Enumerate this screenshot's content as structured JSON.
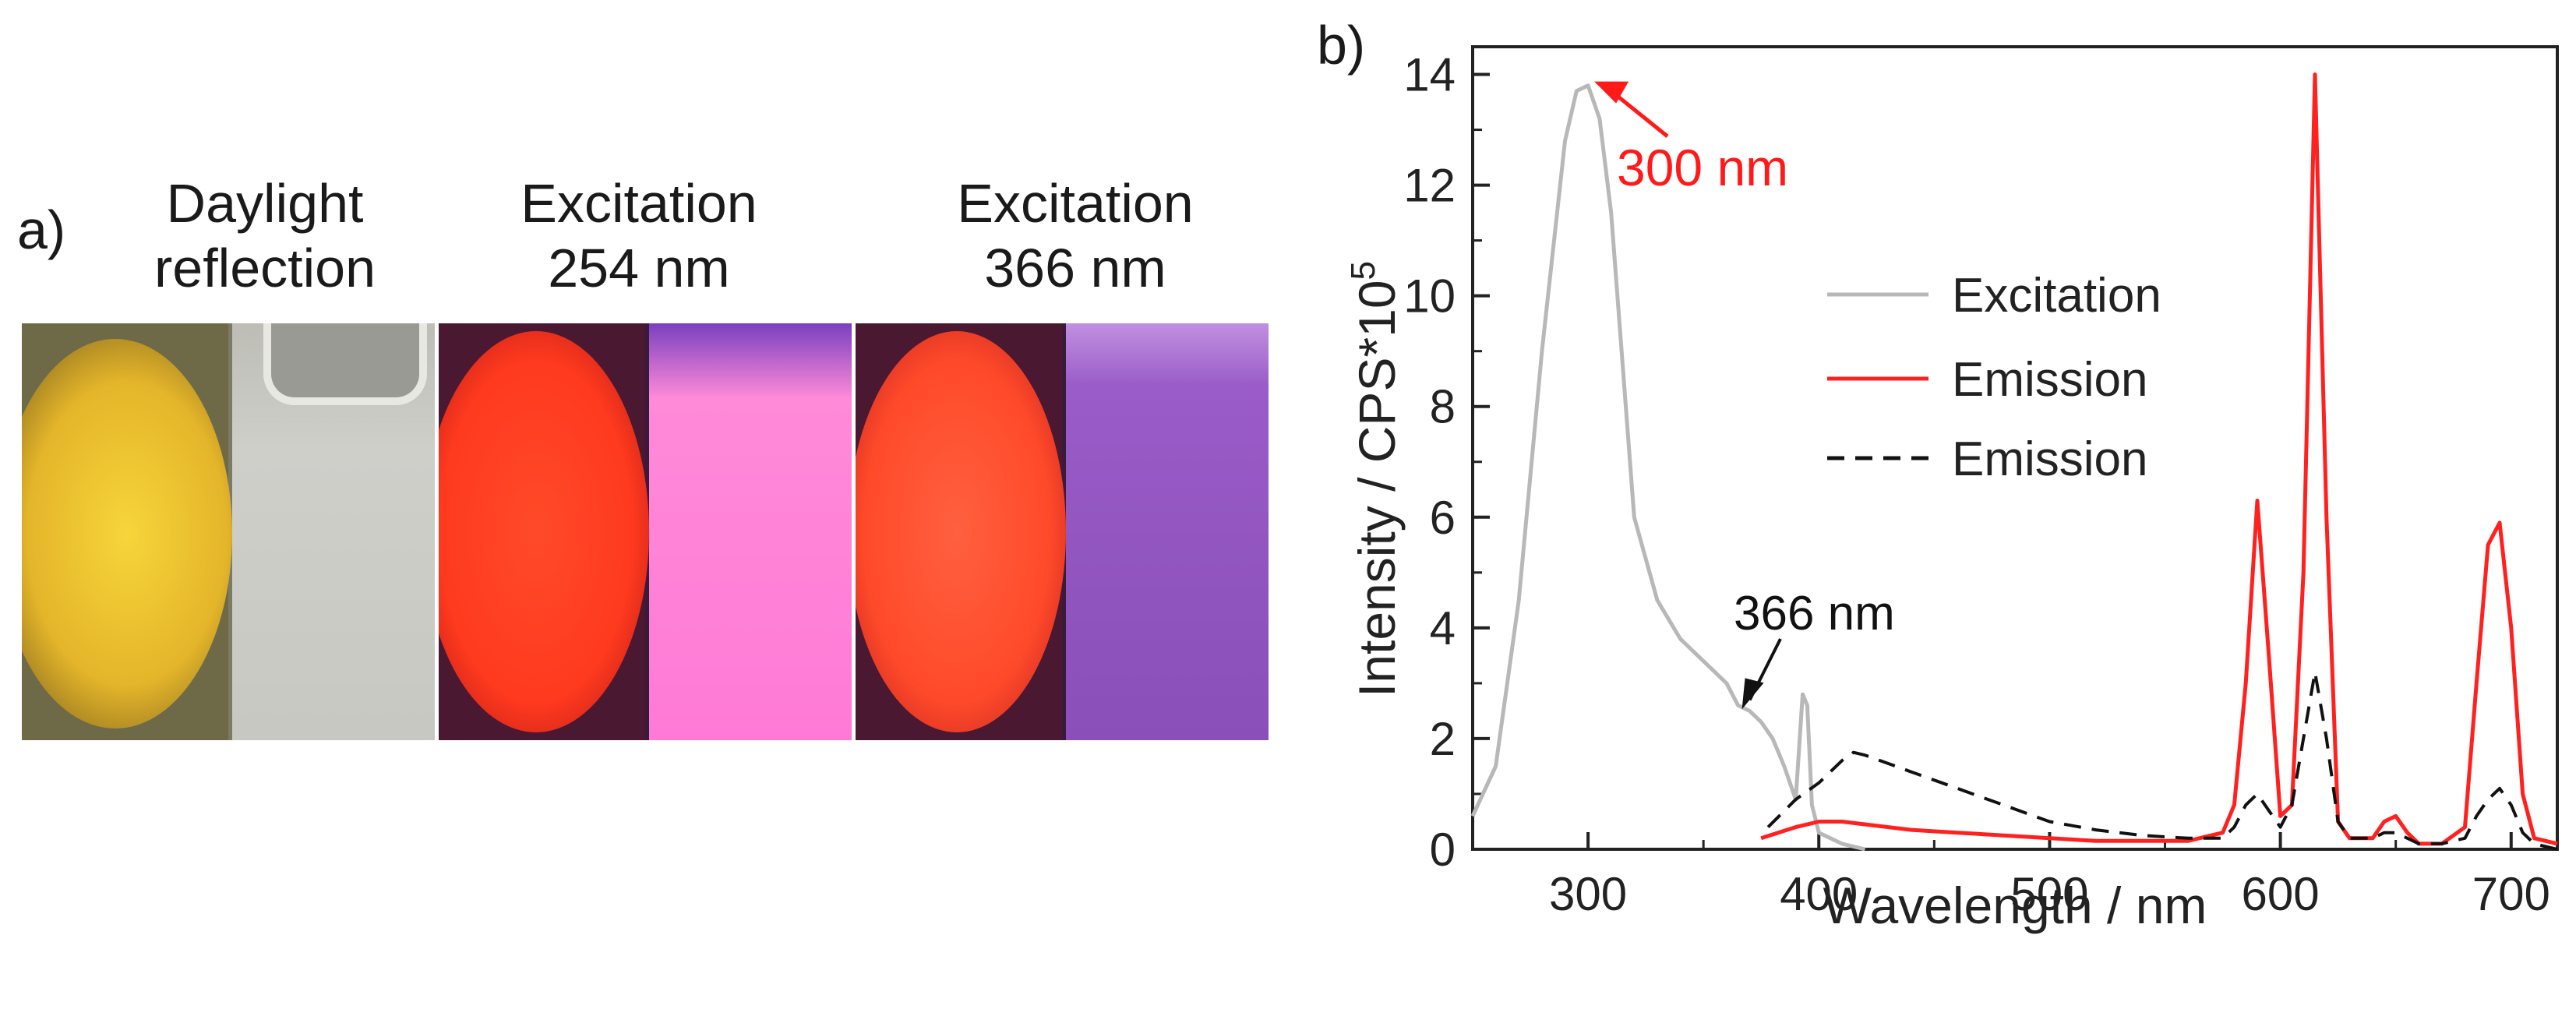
{
  "panel_a": {
    "label": "a)",
    "photos": [
      {
        "line1": "Daylight",
        "line2": "reflection"
      },
      {
        "line1": "Excitation",
        "line2": "254 nm"
      },
      {
        "line1": "Excitation",
        "line2": "366 nm"
      }
    ],
    "colors": {
      "daylight_powder": "#e4b52a",
      "daylight_vial": "#c8c8c2",
      "uv254_powder": "#ff3a1e",
      "uv254_vial": "#ff7ad6",
      "uv366_powder": "#ff4a2a",
      "uv366_vial": "#8a4fb8"
    }
  },
  "panel_b": {
    "label": "b)"
  },
  "chart_data": {
    "type": "line",
    "xlabel": "Wavelength / nm",
    "ylabel": "Intensity / CPS*10",
    "ylabel_superscript": "5",
    "xlim": [
      250,
      720
    ],
    "ylim": [
      0,
      14.5
    ],
    "xticks": [
      300,
      400,
      500,
      600,
      700
    ],
    "yticks": [
      0,
      2,
      4,
      6,
      8,
      10,
      12,
      14
    ],
    "legend_position": "center-right",
    "series": [
      {
        "name": "Excitation",
        "color": "#b8b8b8",
        "dash": "solid",
        "x": [
          250,
          260,
          270,
          280,
          290,
          295,
          300,
          305,
          310,
          320,
          330,
          340,
          350,
          360,
          365,
          370,
          375,
          380,
          385,
          390,
          393,
          395,
          397,
          400,
          410,
          420
        ],
        "y": [
          0.6,
          1.5,
          4.5,
          9.0,
          12.8,
          13.7,
          13.8,
          13.2,
          11.5,
          6.0,
          4.5,
          3.8,
          3.4,
          3.0,
          2.6,
          2.5,
          2.3,
          2.0,
          1.5,
          0.9,
          2.8,
          2.6,
          0.8,
          0.3,
          0.1,
          0.0
        ]
      },
      {
        "name": "Emission",
        "color": "#ff2020",
        "dash": "solid",
        "x": [
          375,
          390,
          400,
          410,
          420,
          440,
          460,
          480,
          500,
          520,
          540,
          560,
          575,
          580,
          585,
          590,
          595,
          600,
          605,
          610,
          615,
          620,
          625,
          630,
          640,
          645,
          650,
          655,
          660,
          670,
          680,
          685,
          690,
          695,
          700,
          705,
          710,
          720
        ],
        "y": [
          0.2,
          0.4,
          0.5,
          0.5,
          0.45,
          0.35,
          0.3,
          0.25,
          0.2,
          0.15,
          0.15,
          0.15,
          0.3,
          0.8,
          3.0,
          6.3,
          3.5,
          0.6,
          0.8,
          5.0,
          14.0,
          6.0,
          0.5,
          0.2,
          0.2,
          0.5,
          0.6,
          0.3,
          0.1,
          0.1,
          0.4,
          3.0,
          5.5,
          5.9,
          4.0,
          1.0,
          0.2,
          0.1
        ]
      },
      {
        "name": "Emission",
        "color": "#111111",
        "dash": "dashed",
        "x": [
          378,
          390,
          400,
          410,
          415,
          420,
          440,
          460,
          480,
          500,
          520,
          540,
          560,
          575,
          580,
          585,
          590,
          595,
          600,
          605,
          610,
          615,
          620,
          625,
          630,
          640,
          645,
          650,
          655,
          660,
          670,
          680,
          685,
          690,
          695,
          700,
          705,
          710,
          720
        ],
        "y": [
          0.4,
          0.9,
          1.2,
          1.6,
          1.75,
          1.7,
          1.4,
          1.1,
          0.8,
          0.5,
          0.35,
          0.25,
          0.2,
          0.2,
          0.4,
          0.8,
          1.0,
          0.7,
          0.4,
          0.8,
          2.0,
          3.2,
          2.0,
          0.5,
          0.2,
          0.2,
          0.3,
          0.3,
          0.2,
          0.1,
          0.1,
          0.2,
          0.6,
          0.9,
          1.1,
          0.8,
          0.3,
          0.1,
          0.0
        ]
      }
    ],
    "annotations": [
      {
        "text": "300 nm",
        "color": "#ff1a1a",
        "point_x": 300,
        "point_y": 13.9
      },
      {
        "text": "366 nm",
        "color": "#111111",
        "point_x": 366,
        "point_y": 2.5
      }
    ]
  }
}
